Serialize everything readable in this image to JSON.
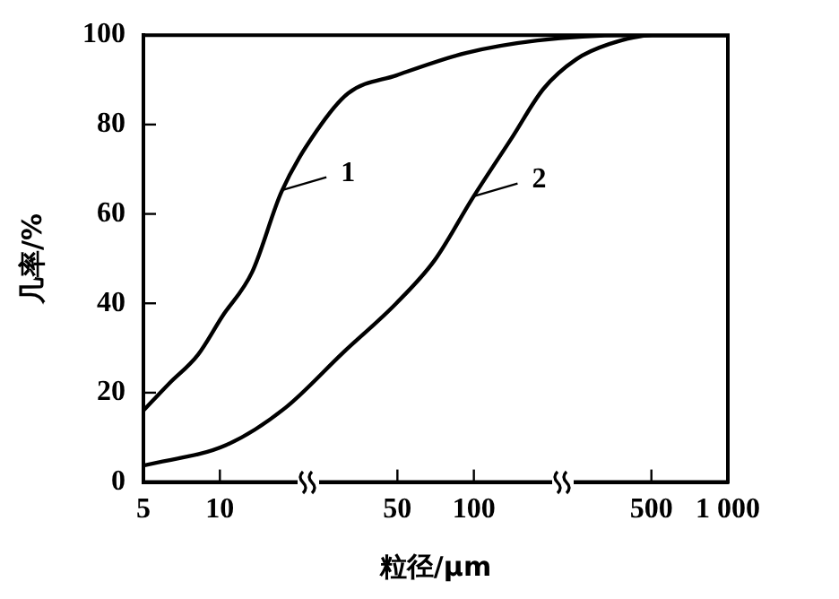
{
  "chart_data": {
    "type": "line",
    "xlabel": "粒径/μm",
    "ylabel": "几率/%",
    "log": "x",
    "grid": false,
    "legend": false,
    "marker": "none",
    "line_style": "solid",
    "xlim": [
      5,
      1000
    ],
    "xticks": [
      5,
      10,
      50,
      100,
      500,
      {
        "value": 1000,
        "label": "1 000"
      }
    ],
    "ylim": [
      0,
      100
    ],
    "yticks": [
      0,
      20,
      40,
      60,
      80,
      100
    ],
    "series": [
      {
        "color": "#000000",
        "x": [
          5,
          6.3,
          8.2,
          10.2,
          13.4,
          17.5,
          24,
          32,
          49.5,
          93,
          178,
          400,
          1000
        ],
        "values": [
          16,
          22,
          28.5,
          37,
          47,
          65,
          78.5,
          87,
          91,
          96,
          98.8,
          100,
          100
        ]
      },
      {
        "color": "#000000",
        "x": [
          5,
          10.6,
          18,
          30.6,
          49.5,
          70,
          99,
          141,
          188,
          253,
          341,
          505,
          1000
        ],
        "values": [
          3.7,
          8.3,
          16.5,
          29,
          40,
          49.6,
          63.6,
          77,
          88,
          94.6,
          98,
          100,
          100
        ]
      }
    ],
    "annotations": [
      {
        "text": "1",
        "x": 17.5,
        "y": 65
      },
      {
        "text": "2",
        "x": 99,
        "y": 63.6
      }
    ]
  }
}
